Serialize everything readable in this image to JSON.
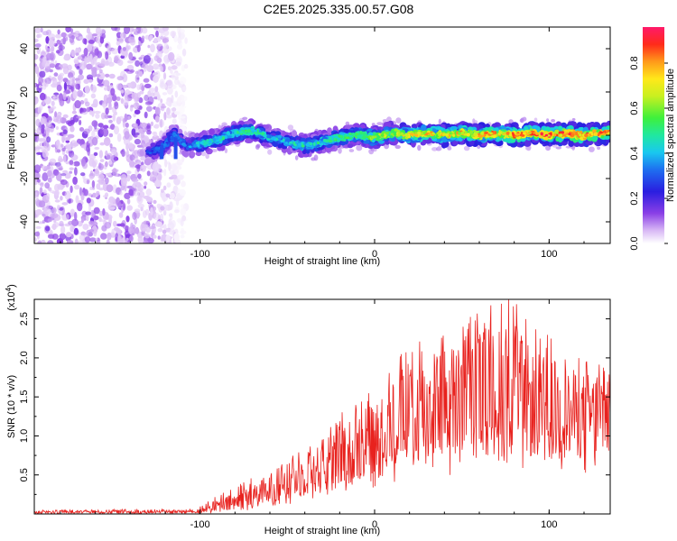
{
  "title": "C2E5.2025.335.00.57.G08",
  "chart_data": [
    {
      "type": "heatmap",
      "name": "spectrogram",
      "xlabel": "Height of straight line (km)",
      "ylabel": "Frequency (Hz)",
      "xlim": [
        -195,
        135
      ],
      "ylim": [
        -50,
        50
      ],
      "xticks": [
        -100,
        0,
        100
      ],
      "xtick_labels": [
        "-100",
        "0",
        "100"
      ],
      "yticks": [
        -40,
        -20,
        0,
        20,
        40
      ],
      "ytick_labels": [
        "-40",
        "-20",
        "0",
        "20",
        "40"
      ],
      "colorbar": {
        "label": "Normalized spectral amplitude",
        "range": [
          0,
          0.96
        ],
        "ticks": [
          0.0,
          0.2,
          0.4,
          0.6,
          0.8
        ],
        "tick_labels": [
          "0.0",
          "0.2",
          "0.4",
          "0.6",
          "0.8"
        ]
      },
      "noise_region_x": [
        -195,
        -108
      ],
      "signal_track": {
        "x": [
          -130,
          -122,
          -115,
          -108,
          -100,
          -90,
          -80,
          -70,
          -60,
          -50,
          -40,
          -30,
          -20,
          -10,
          0,
          10,
          20,
          30,
          40,
          50,
          60,
          70,
          80,
          90,
          100,
          110,
          120,
          130
        ],
        "frequency": [
          -8,
          -6,
          0,
          -5,
          -4,
          -2,
          1,
          2,
          -1,
          -3,
          -5,
          -3,
          -1,
          0,
          -1,
          1,
          0,
          1,
          0,
          1,
          0,
          1,
          0,
          1,
          0,
          1,
          0,
          1
        ],
        "peak_amplitude": [
          0.3,
          0.35,
          0.4,
          0.35,
          0.45,
          0.5,
          0.5,
          0.55,
          0.45,
          0.45,
          0.5,
          0.5,
          0.55,
          0.6,
          0.65,
          0.7,
          0.75,
          0.78,
          0.78,
          0.8,
          0.82,
          0.82,
          0.85,
          0.85,
          0.9,
          0.92,
          0.9,
          0.88
        ]
      }
    },
    {
      "type": "line",
      "name": "snr",
      "xlabel": "Height of straight line (km)",
      "ylabel": "SNR (10 * v/v)",
      "y_multiplier": "(x10",
      "y_multiplier_exp": "4",
      "y_multiplier_close": ")",
      "xlim": [
        -195,
        135
      ],
      "ylim": [
        0,
        2.75
      ],
      "xticks": [
        -100,
        0,
        100
      ],
      "xtick_labels": [
        "-100",
        "0",
        "100"
      ],
      "yticks": [
        0.5,
        1.0,
        1.5,
        2.0,
        2.5
      ],
      "ytick_labels": [
        "0.5",
        "1.0",
        "1.5",
        "2.0",
        "2.5"
      ],
      "color": "#e8221e",
      "envelope": {
        "x": [
          -195,
          -150,
          -110,
          -100,
          -90,
          -80,
          -70,
          -60,
          -50,
          -40,
          -30,
          -20,
          -10,
          0,
          10,
          20,
          30,
          40,
          50,
          60,
          70,
          80,
          90,
          100,
          110,
          120,
          135
        ],
        "min": [
          0.0,
          0.0,
          0.0,
          0.01,
          0.02,
          0.03,
          0.05,
          0.07,
          0.1,
          0.15,
          0.2,
          0.25,
          0.3,
          0.3,
          0.35,
          0.45,
          0.5,
          0.45,
          0.45,
          0.5,
          0.5,
          0.55,
          0.55,
          0.5,
          0.55,
          0.5,
          0.55
        ],
        "max": [
          0.05,
          0.06,
          0.06,
          0.1,
          0.25,
          0.35,
          0.5,
          0.6,
          0.75,
          0.9,
          1.0,
          1.3,
          1.5,
          1.6,
          1.9,
          2.2,
          2.3,
          2.4,
          2.5,
          2.6,
          2.75,
          2.8,
          2.4,
          2.3,
          2.1,
          2.0,
          1.95
        ],
        "mean": [
          0.02,
          0.03,
          0.03,
          0.04,
          0.1,
          0.15,
          0.25,
          0.3,
          0.4,
          0.5,
          0.6,
          0.7,
          0.85,
          0.95,
          1.1,
          1.3,
          1.35,
          1.4,
          1.45,
          1.5,
          1.55,
          1.6,
          1.4,
          1.35,
          1.3,
          1.25,
          1.3
        ]
      }
    }
  ]
}
